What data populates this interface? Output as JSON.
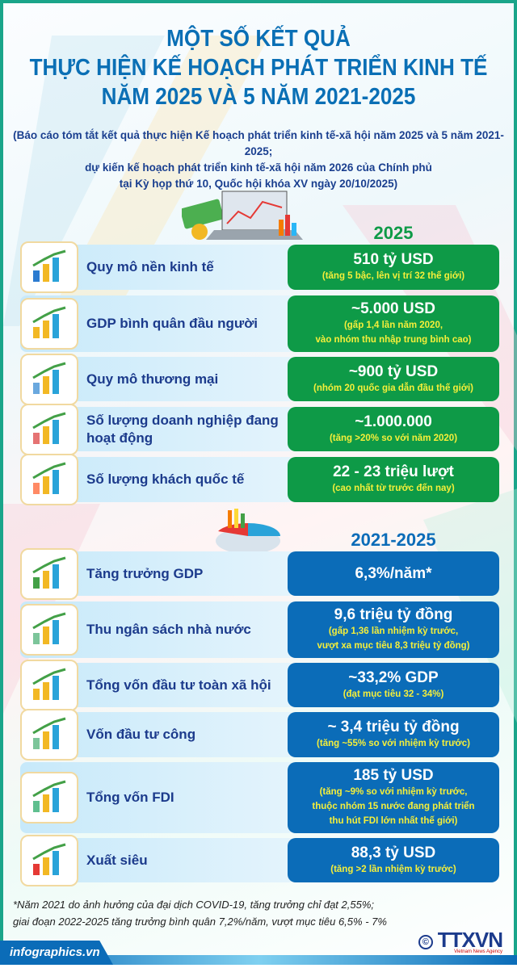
{
  "header": {
    "title_lines": [
      "MỘT SỐ KẾT QUẢ",
      "THỰC HIỆN KẾ HOẠCH PHÁT TRIỂN KINH TẾ",
      "NĂM 2025 VÀ 5 NĂM 2021-2025"
    ],
    "subtitle_lines": [
      "(Báo cáo tóm tắt kết quả thực hiện Kế hoạch phát triển kinh tế-xã hội năm 2025 và 5 năm 2021-2025;",
      "dự kiến kế hoạch phát triển kinh tế-xã hội năm 2026 của Chính phủ",
      "tại Kỳ họp thứ 10, Quốc hội khóa XV ngày 20/10/2025)"
    ]
  },
  "colors": {
    "title": "#0a6fb5",
    "green": "#0e9a47",
    "blue": "#0b6cb8",
    "note": "#f5ef3a",
    "label": "#1c3b8c"
  },
  "section_2025": {
    "heading": "2025",
    "items": [
      {
        "icon": "globe-chart-icon",
        "label": "Quy mô nền kinh tế",
        "value": "510 tỷ USD",
        "notes": [
          "(tăng 5 bậc, lên vị trí 32 thế giới)"
        ]
      },
      {
        "icon": "coins-growth-icon",
        "label": "GDP bình quân đầu người",
        "value": "~5.000 USD",
        "notes": [
          "(gấp 1,4 lần năm 2020,",
          "vào nhóm thu nhập trung bình cao)"
        ]
      },
      {
        "icon": "trade-plane-globe-icon",
        "label": "Quy mô thương mại",
        "value": "~900 tỷ USD",
        "notes": [
          "(nhóm 20 quốc gia dẫn đầu thế giới)"
        ]
      },
      {
        "icon": "business-people-icon",
        "label": "Số lượng doanh nghiệp đang hoạt động",
        "value": "~1.000.000",
        "notes": [
          "(tăng >20% so với năm 2020)"
        ]
      },
      {
        "icon": "tourists-icon",
        "label": "Số lượng khách quốc tế",
        "value": "22 - 23 triệu lượt",
        "notes": [
          "(cao nhất từ trước đến nay)"
        ]
      }
    ]
  },
  "section_2021_2025": {
    "heading": "2021-2025",
    "items": [
      {
        "icon": "bar-chart-icon",
        "label": "Tăng trưởng GDP",
        "value": "6,3%/năm*",
        "notes": []
      },
      {
        "icon": "money-stack-icon",
        "label": "Thu ngân sách nhà nước",
        "value": "9,6 triệu tỷ đồng",
        "notes": [
          "(gấp 1,36 lần nhiệm kỳ trước,",
          "vượt xa mục tiêu 8,3 triệu tỷ đồng)"
        ]
      },
      {
        "icon": "dollar-coins-icon",
        "label": "Tổng vốn đầu tư toàn xã hội",
        "value": "~33,2% GDP",
        "notes": [
          "(đạt mục tiêu 32 - 34%)"
        ]
      },
      {
        "icon": "money-stack-icon",
        "label": "Vốn đầu tư công",
        "value": "~ 3,4 triệu tỷ đồng",
        "notes": [
          "(tăng ~55% so với nhiệm kỳ trước)"
        ]
      },
      {
        "icon": "money-plant-icon",
        "label": "Tổng vốn FDI",
        "value": "185 tỷ USD",
        "notes": [
          "(tăng ~9% so với nhiệm kỳ trước,",
          "thuộc nhóm 15 nước đang phát triển",
          "thu hút FDI lớn nhất thế giới)"
        ]
      },
      {
        "icon": "export-import-icon",
        "label": "Xuất siêu",
        "value": "88,3 tỷ USD",
        "notes": [
          "(tăng >2 lần nhiệm kỳ trước)"
        ]
      }
    ]
  },
  "footnote": [
    "*Năm 2021 do ảnh hưởng của đại dịch COVID-19, tăng trưởng chỉ đạt 2,55%;",
    "giai đoạn 2022-2025 tăng trưởng bình quân 7,2%/năm, vượt mục tiêu 6,5% - 7%"
  ],
  "footer": {
    "site": "infographics.vn",
    "copyright": "©",
    "logo": "TTXVN",
    "logo_sub": "Vietnam News Agency"
  }
}
